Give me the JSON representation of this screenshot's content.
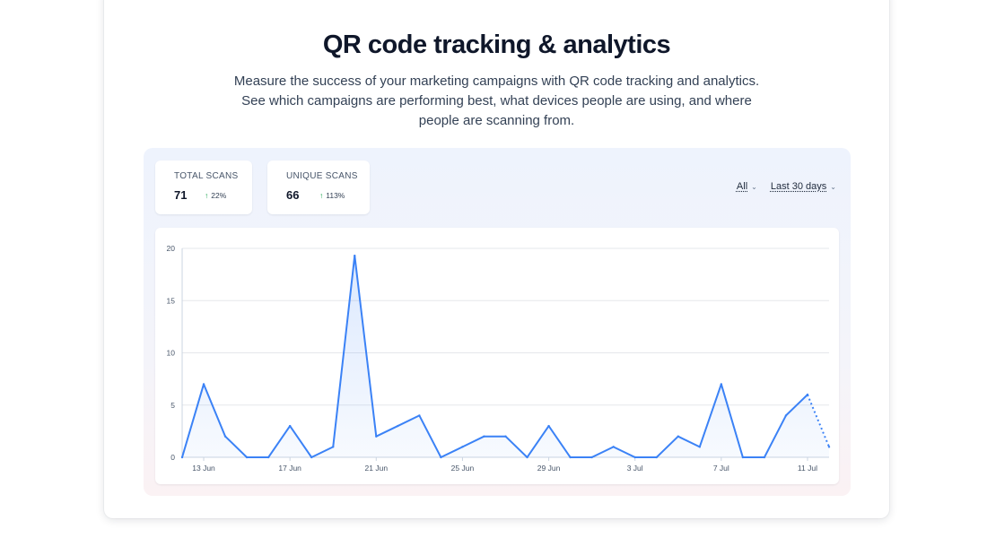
{
  "header": {
    "title": "QR code tracking & analytics",
    "subtitle": "Measure the success of your marketing campaigns with QR code tracking and analytics. See which campaigns are performing best, what devices people are using, and where people are scanning from."
  },
  "stats": [
    {
      "label": "TOTAL SCANS",
      "value": "71",
      "change": "22%",
      "trend_icon": "arrow-up-icon"
    },
    {
      "label": "UNIQUE SCANS",
      "value": "66",
      "change": "113%",
      "trend_icon": "arrow-up-icon"
    }
  ],
  "filters": {
    "scope": "All",
    "range": "Last 30 days"
  },
  "colors": {
    "line": "#3b82f6",
    "trend_up": "#16a34a",
    "title": "#0f172a"
  },
  "chart_data": {
    "type": "area",
    "ylim": [
      0,
      20
    ],
    "yticks": [
      0,
      5,
      10,
      15,
      20
    ],
    "xticks": [
      "13 Jun",
      "17 Jun",
      "21 Jun",
      "25 Jun",
      "29 Jun",
      "3 Jul",
      "7 Jul",
      "11 Jul"
    ],
    "x": [
      "12 Jun",
      "13 Jun",
      "14 Jun",
      "15 Jun",
      "16 Jun",
      "17 Jun",
      "18 Jun",
      "19 Jun",
      "20 Jun",
      "21 Jun",
      "22 Jun",
      "23 Jun",
      "24 Jun",
      "25 Jun",
      "26 Jun",
      "27 Jun",
      "28 Jun",
      "29 Jun",
      "30 Jun",
      "1 Jul",
      "2 Jul",
      "3 Jul",
      "4 Jul",
      "5 Jul",
      "6 Jul",
      "7 Jul",
      "8 Jul",
      "9 Jul",
      "10 Jul",
      "11 Jul",
      "12 Jul"
    ],
    "values": [
      0,
      7,
      2,
      0,
      0,
      3,
      0,
      1,
      19.3,
      2,
      3,
      4,
      0,
      1,
      2,
      2,
      0,
      3,
      0,
      0,
      1,
      0,
      0,
      2,
      1,
      7,
      0,
      0,
      4,
      6,
      1
    ],
    "dashed_last_segment": true,
    "grid": true
  }
}
